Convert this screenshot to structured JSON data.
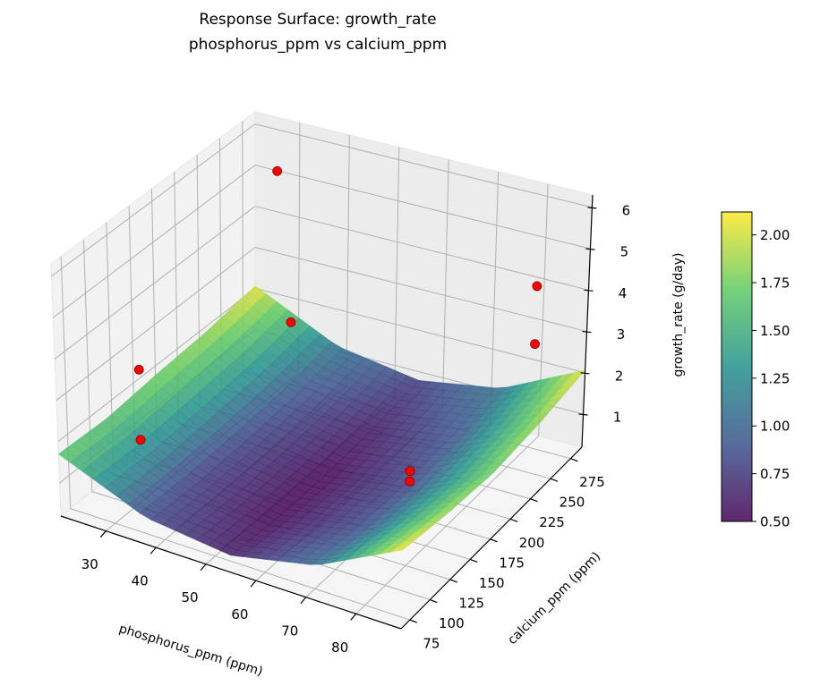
{
  "chart_data": {
    "type": "surface3d",
    "title": "Response Surface: growth_rate",
    "subtitle": "phosphorus_ppm vs calcium_ppm",
    "xlabel": "phosphorus_ppm (ppm)",
    "ylabel": "calcium_ppm (ppm)",
    "zlabel": "growth_rate (g/day)",
    "xlim": [
      21,
      89
    ],
    "ylim": [
      64,
      289
    ],
    "zlim": [
      0.2,
      6.3
    ],
    "xticks": [
      "30",
      "40",
      "50",
      "60",
      "70",
      "80"
    ],
    "yticks": [
      "75",
      "100",
      "125",
      "150",
      "175",
      "200",
      "225",
      "250",
      "275"
    ],
    "zticks": [
      "1",
      "2",
      "3",
      "4",
      "5",
      "6"
    ],
    "grid": true,
    "surface": {
      "colormap": "viridis",
      "x": [
        21,
        38,
        55,
        72,
        89
      ],
      "y": [
        64,
        120,
        176,
        233,
        289
      ],
      "z": [
        [
          1.7,
          0.85,
          0.61,
          1.05,
          2.1
        ],
        [
          1.65,
          0.8,
          0.51,
          0.88,
          1.9
        ],
        [
          1.78,
          0.83,
          0.51,
          0.83,
          1.78
        ],
        [
          1.87,
          0.92,
          0.6,
          0.92,
          1.87
        ],
        [
          2.06,
          1.11,
          0.79,
          1.11,
          2.06
        ]
      ]
    },
    "points": {
      "color": "#ff0000",
      "x": [
        28,
        24,
        24,
        30,
        70,
        70,
        84,
        84
      ],
      "y": [
        275,
        140,
        140,
        280,
        190,
        190,
        255,
        255
      ],
      "z": [
        5.3,
        2.6,
        0.9,
        1.6,
        0.9,
        0.65,
        4.6,
        3.2
      ]
    },
    "colorbar": {
      "range": [
        0.5,
        2.12
      ],
      "ticks": [
        "0.50",
        "0.75",
        "1.00",
        "1.25",
        "1.50",
        "1.75",
        "2.00"
      ],
      "tick_values": [
        0.5,
        0.75,
        1.0,
        1.25,
        1.5,
        1.75,
        2.0
      ]
    }
  }
}
